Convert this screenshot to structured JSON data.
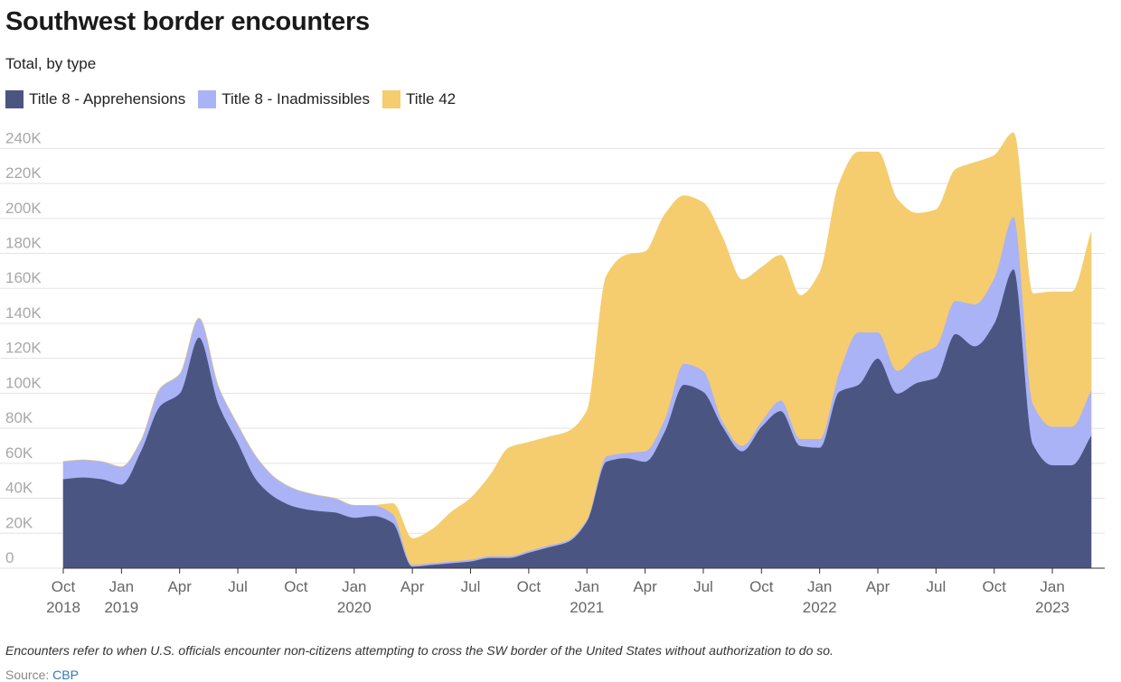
{
  "header": {
    "title": "Southwest border encounters",
    "subtitle": "Total, by type"
  },
  "colors": {
    "apprehensions": "#4b5582",
    "inadmissibles": "#aab3f5",
    "title42": "#f5cd6e",
    "grid": "#e3e3e3",
    "tick_text": "#a8a8a8",
    "axis_label": "#666666"
  },
  "chart_data": {
    "type": "area",
    "stacked": true,
    "title": "Southwest border encounters",
    "subtitle": "Total, by type",
    "ylim": [
      0,
      250000
    ],
    "yticks": [
      0,
      20000,
      40000,
      60000,
      80000,
      100000,
      120000,
      140000,
      160000,
      180000,
      200000,
      220000,
      240000
    ],
    "ytick_labels": [
      "0",
      "20K",
      "40K",
      "60K",
      "80K",
      "100K",
      "120K",
      "140K",
      "160K",
      "180K",
      "200K",
      "220K",
      "240K"
    ],
    "legend_position": "top-left",
    "grid": true,
    "x": [
      "2018-10",
      "2018-11",
      "2018-12",
      "2019-01",
      "2019-02",
      "2019-03",
      "2019-04",
      "2019-05",
      "2019-06",
      "2019-07",
      "2019-08",
      "2019-09",
      "2019-10",
      "2019-11",
      "2019-12",
      "2020-01",
      "2020-02",
      "2020-03",
      "2020-04",
      "2020-05",
      "2020-06",
      "2020-07",
      "2020-08",
      "2020-09",
      "2020-10",
      "2020-11",
      "2020-12",
      "2021-01",
      "2021-02",
      "2021-03",
      "2021-04",
      "2021-05",
      "2021-06",
      "2021-07",
      "2021-08",
      "2021-09",
      "2021-10",
      "2021-11",
      "2021-12",
      "2022-01",
      "2022-02",
      "2022-03",
      "2022-04",
      "2022-05",
      "2022-06",
      "2022-07",
      "2022-08",
      "2022-09",
      "2022-10",
      "2022-11",
      "2022-12",
      "2023-01",
      "2023-02",
      "2023-03"
    ],
    "x_ticks": [
      {
        "x": "2018-10",
        "label": "Oct",
        "year": "2018"
      },
      {
        "x": "2019-01",
        "label": "Jan",
        "year": "2019"
      },
      {
        "x": "2019-04",
        "label": "Apr",
        "year": ""
      },
      {
        "x": "2019-07",
        "label": "Jul",
        "year": ""
      },
      {
        "x": "2019-10",
        "label": "Oct",
        "year": ""
      },
      {
        "x": "2020-01",
        "label": "Jan",
        "year": "2020"
      },
      {
        "x": "2020-04",
        "label": "Apr",
        "year": ""
      },
      {
        "x": "2020-07",
        "label": "Jul",
        "year": ""
      },
      {
        "x": "2020-10",
        "label": "Oct",
        "year": ""
      },
      {
        "x": "2021-01",
        "label": "Jan",
        "year": "2021"
      },
      {
        "x": "2021-04",
        "label": "Apr",
        "year": ""
      },
      {
        "x": "2021-07",
        "label": "Jul",
        "year": ""
      },
      {
        "x": "2021-10",
        "label": "Oct",
        "year": ""
      },
      {
        "x": "2022-01",
        "label": "Jan",
        "year": "2022"
      },
      {
        "x": "2022-04",
        "label": "Apr",
        "year": ""
      },
      {
        "x": "2022-07",
        "label": "Jul",
        "year": ""
      },
      {
        "x": "2022-10",
        "label": "Oct",
        "year": ""
      },
      {
        "x": "2023-01",
        "label": "Jan",
        "year": "2023"
      }
    ],
    "series": [
      {
        "name": "Title 8 - Apprehensions",
        "color": "#4b5582",
        "values": [
          51000,
          52000,
          51000,
          48000,
          67000,
          93000,
          100000,
          132000,
          94000,
          72000,
          50000,
          40000,
          35000,
          33000,
          32000,
          29000,
          30000,
          26000,
          1000,
          2000,
          3000,
          4000,
          6000,
          6000,
          9000,
          12000,
          15000,
          27000,
          61000,
          63000,
          61000,
          78000,
          105000,
          101000,
          81000,
          67000,
          81000,
          90000,
          70000,
          69000,
          101000,
          105000,
          120000,
          100000,
          106000,
          109000,
          134000,
          127000,
          140000,
          171000,
          71000,
          59000,
          59000,
          76000
        ]
      },
      {
        "name": "Title 8 - Inadmissibles",
        "color": "#aab3f5",
        "values": [
          10000,
          10000,
          10000,
          10000,
          6000,
          10000,
          11000,
          11000,
          10000,
          10000,
          13000,
          11000,
          10000,
          9000,
          8000,
          7000,
          6000,
          5000,
          1000,
          1000,
          1000,
          1000,
          1000,
          1000,
          1000,
          1000,
          1000,
          1000,
          3000,
          3000,
          6000,
          7000,
          12000,
          12000,
          3000,
          3000,
          3000,
          6000,
          4000,
          5000,
          11000,
          30000,
          15000,
          13000,
          16000,
          18000,
          19000,
          24000,
          26000,
          30000,
          23000,
          22000,
          22000,
          26000
        ]
      },
      {
        "name": "Title 42",
        "color": "#f5cd6e",
        "values": [
          0,
          0,
          0,
          0,
          0,
          0,
          0,
          0,
          0,
          0,
          0,
          0,
          0,
          0,
          0,
          0,
          0,
          6000,
          15000,
          19000,
          28000,
          35000,
          46000,
          62000,
          62000,
          62000,
          62000,
          62000,
          103000,
          113000,
          114000,
          117000,
          96000,
          96000,
          105000,
          95000,
          88000,
          83000,
          82000,
          95000,
          108000,
          103000,
          103000,
          98000,
          81000,
          78000,
          75000,
          81000,
          70000,
          48000,
          63000,
          77000,
          77000,
          90000
        ]
      }
    ]
  },
  "footer": {
    "note": "Encounters refer to when U.S. officials encounter non-citizens attempting to cross the SW border of the United States without authorization to do so.",
    "source_label": "Source:",
    "source_name": "CBP"
  }
}
